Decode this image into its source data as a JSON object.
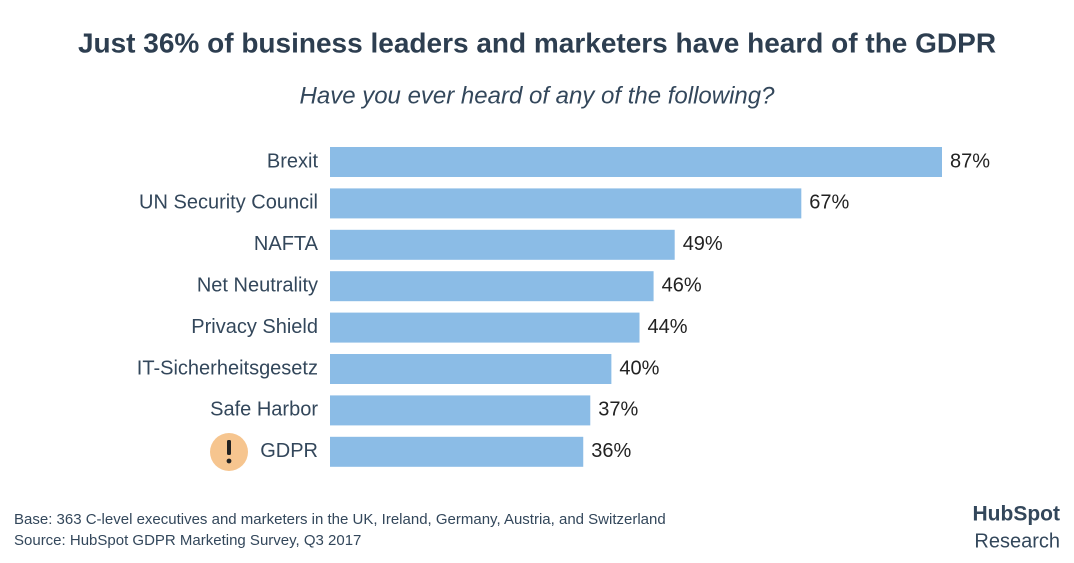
{
  "chart_data": {
    "type": "bar",
    "orientation": "horizontal",
    "title": "Just 36% of business leaders and marketers have heard of the GDPR",
    "subtitle": "Have you ever heard of any of the following?",
    "categories": [
      "Brexit",
      "UN Security Council",
      "NAFTA",
      "Net Neutrality",
      "Privacy Shield",
      "IT-Sicherheitsgesetz",
      "Safe Harbor",
      "GDPR"
    ],
    "values": [
      87,
      67,
      49,
      46,
      44,
      40,
      37,
      36
    ],
    "value_labels": [
      "87%",
      "67%",
      "49%",
      "46%",
      "44%",
      "40%",
      "37%",
      "36%"
    ],
    "color": "#8bbce6",
    "notes": [
      "Base: 363 C-level executives and marketers in the UK, Ireland, Germany, Austria, and Switzerland",
      "Source: HubSpot GDPR Marketing Survey, Q3 2017"
    ],
    "brand": "HubSpot",
    "brand_subtitle": "Research"
  }
}
